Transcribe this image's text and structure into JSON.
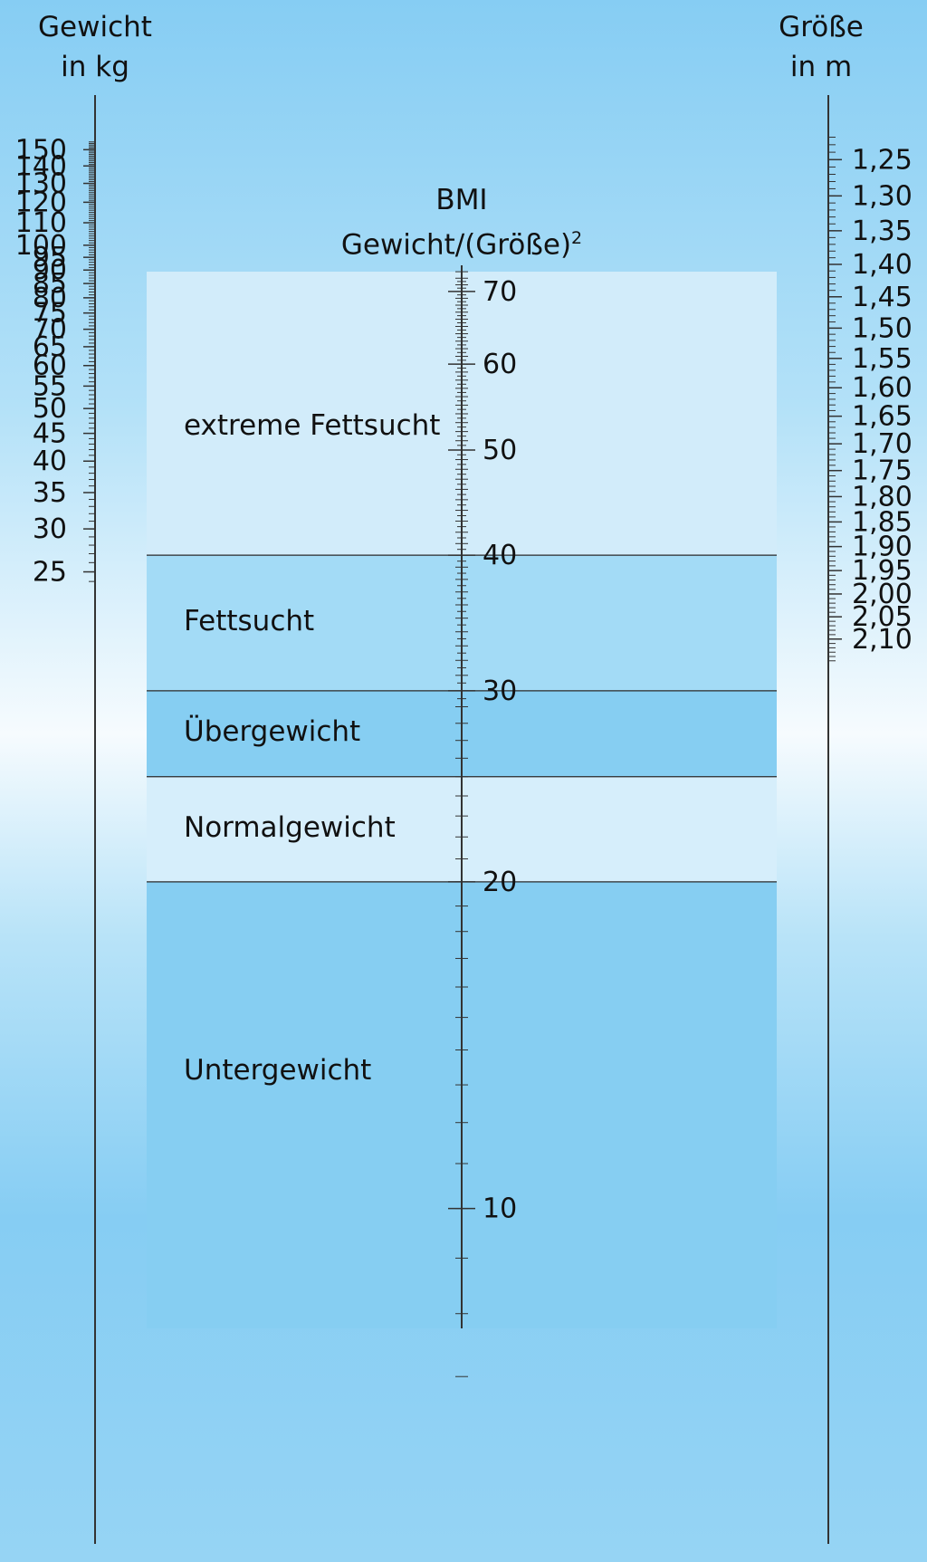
{
  "weight_axis": {
    "title_line1": "Gewicht",
    "title_line2": "in kg",
    "labels": [
      "150",
      "140",
      "130",
      "120",
      "110",
      "100",
      "95",
      "90",
      "85",
      "80",
      "75",
      "70",
      "65",
      "60",
      "55",
      "50",
      "45",
      "40",
      "35",
      "30",
      "25"
    ]
  },
  "height_axis": {
    "title_line1": "Größe",
    "title_line2": "in m",
    "labels": [
      "1,25",
      "1,30",
      "1,35",
      "1,40",
      "1,45",
      "1,50",
      "1,55",
      "1,60",
      "1,65",
      "1,70",
      "1,75",
      "1,80",
      "1,85",
      "1,90",
      "1,95",
      "2,00",
      "2,05",
      "2,10"
    ]
  },
  "bmi_axis": {
    "title_line1": "BMI",
    "title_line2": "Gewicht/(Größe)",
    "title_superscript": "2",
    "labels": [
      "70",
      "60",
      "50",
      "40",
      "30",
      "20",
      "10"
    ]
  },
  "zones": [
    {
      "label": "extreme Fettsucht",
      "bmi_from": 40,
      "bmi_to": 73,
      "color": "#d2ecfa"
    },
    {
      "label": "Fettsucht",
      "bmi_from": 30,
      "bmi_to": 40,
      "color": "#a3dbf6"
    },
    {
      "label": "Übergewicht",
      "bmi_from": 25,
      "bmi_to": 30,
      "color": "#86cef2"
    },
    {
      "label": "Normalgewicht",
      "bmi_from": 20,
      "bmi_to": 25,
      "color": "#d6eefb"
    },
    {
      "label": "Untergewicht",
      "bmi_from": 6,
      "bmi_to": 20,
      "color": "#86cef2"
    }
  ],
  "colors": {
    "background_top": "#86cdf3",
    "background_mid": "#f6fbfe",
    "zone_line": "#2a2a2a",
    "axis_line": "#333333"
  }
}
